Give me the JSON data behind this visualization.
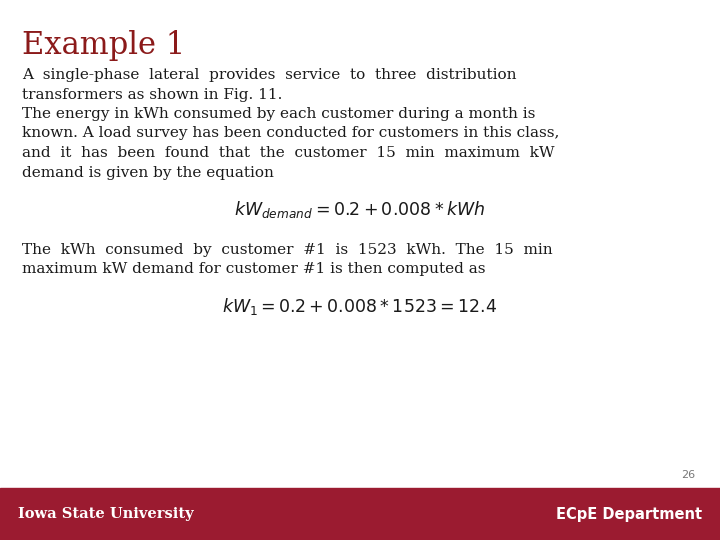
{
  "title": "Example 1",
  "title_color": "#8B1A1A",
  "title_fontsize": 22,
  "body_color": "#1a1a1a",
  "body_fontsize": 11.0,
  "line1": "A  single-phase  lateral  provides  service  to  three  distribution",
  "line2": "transformers as shown in Fig. 11.",
  "line3": "The energy in kWh consumed by each customer during a month is",
  "line4": "known. A load survey has been conducted for customers in this class,",
  "line5": "and  it  has  been  found  that  the  customer  15  min  maximum  kW",
  "line6": "demand is given by the equation",
  "equation1": "$kW_{demand} = 0.2 + 0.008*kWh$",
  "line7": "The  kWh  consumed  by  customer  #1  is  1523  kWh.  The  15  min",
  "line8": "maximum kW demand for customer #1 is then computed as",
  "equation2": "$kW_1 = 0.2 + 0.008 * 1523 = 12.4$",
  "page_number": "26",
  "footer_bg_color": "#9B1B30",
  "footer_text_left": "Iowa State University",
  "footer_text_right": "ECpE Department",
  "footer_text_color": "#ffffff",
  "bg_color": "#ffffff"
}
